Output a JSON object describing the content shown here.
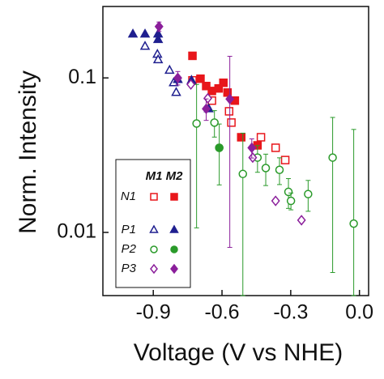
{
  "chart_data": {
    "type": "scatter",
    "xlabel": "Voltage (V vs NHE)",
    "ylabel": "Norm. Intensity",
    "xlim": [
      -1.12,
      0.04
    ],
    "ylim": [
      0.0039,
      0.29
    ],
    "log_y": true,
    "xticks": [
      -0.9,
      -0.6,
      -0.3,
      {
        "value": 0,
        "label": "0.0"
      }
    ],
    "yticks": [
      0.1,
      0.01
    ],
    "series": [
      {
        "name": "N1",
        "variant": "M1",
        "color": "#e8161b",
        "marker": "square",
        "filled": false,
        "x": [
          -0.729,
          -0.644,
          -0.569,
          -0.559,
          -0.43,
          -0.366,
          -0.324
        ],
        "values": [
          0.0964,
          0.0713,
          0.0608,
          0.0514,
          0.0413,
          0.0353,
          0.0294
        ]
      },
      {
        "name": "N1",
        "variant": "M2",
        "color": "#e8161b",
        "marker": "square",
        "filled": true,
        "x": [
          -0.729,
          -0.694,
          -0.669,
          -0.644,
          -0.615,
          -0.594,
          -0.576,
          -0.544,
          -0.516,
          -0.445
        ],
        "values": [
          0.139,
          0.0988,
          0.0886,
          0.0823,
          0.0855,
          0.093,
          0.0804,
          0.0713,
          0.0413,
          0.0366
        ]
      },
      {
        "name": "P1",
        "variant": "M1",
        "color": "#1f1f8f",
        "marker": "triangle",
        "filled": false,
        "x": [
          -0.936,
          -0.882,
          -0.879,
          -0.829,
          -0.811,
          -0.8
        ],
        "values": [
          0.16,
          0.142,
          0.131,
          0.112,
          0.093,
          0.0804
        ]
      },
      {
        "name": "P1",
        "variant": "M2",
        "color": "#1f1f8f",
        "marker": "triangle",
        "filled": true,
        "x": [
          -0.989,
          -0.936,
          -0.879,
          -0.879,
          -0.793,
          -0.733,
          -0.658
        ],
        "values": [
          0.192,
          0.192,
          0.192,
          0.177,
          0.0976,
          0.0964,
          0.0631
        ]
      },
      {
        "name": "P2",
        "variant": "M1",
        "color": "#2a9a2a",
        "marker": "circle",
        "filled": false,
        "x": [
          -0.711,
          -0.633,
          -0.612,
          -0.509,
          -0.445,
          -0.409,
          -0.349,
          -0.31,
          -0.299,
          -0.224,
          -0.117,
          -0.025
        ],
        "values": [
          0.0507,
          0.0514,
          0.0353,
          0.0239,
          0.0305,
          0.0261,
          0.0254,
          0.0183,
          0.016,
          0.0177,
          0.0305,
          0.0114
        ],
        "errors": [
          0.04,
          0.01,
          0.015,
          0.02,
          0.006,
          0.006,
          0.005,
          0.004,
          0.002,
          0.004,
          0.025,
          0.035
        ]
      },
      {
        "name": "P2",
        "variant": "M2",
        "color": "#2a9a2a",
        "marker": "circle",
        "filled": true,
        "x": [
          -0.612
        ],
        "values": [
          0.0353
        ]
      },
      {
        "name": "P3",
        "variant": "M1",
        "color": "#8b1f9b",
        "marker": "diamond",
        "filled": false,
        "x": [
          -0.736,
          -0.662,
          -0.466,
          -0.366,
          -0.253
        ],
        "values": [
          0.0907,
          0.0738,
          0.0305,
          0.016,
          0.012
        ]
      },
      {
        "name": "P3",
        "variant": "M2",
        "color": "#8b1f9b",
        "marker": "diamond",
        "filled": true,
        "x": [
          -0.875,
          -0.793,
          -0.669,
          -0.566,
          -0.47
        ],
        "values": [
          0.215,
          0.1,
          0.0631,
          0.073,
          0.0353
        ],
        "errors": [
          0.015,
          0.01,
          0.01,
          0.065,
          0.005
        ]
      }
    ]
  }
}
